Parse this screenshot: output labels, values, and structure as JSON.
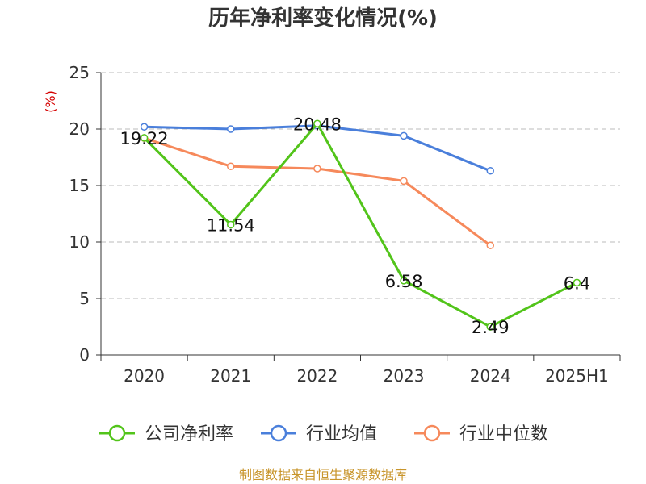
{
  "chart_data": {
    "type": "line",
    "title": "历年净利率变化情况(%)",
    "ylabel": "(%)",
    "xlabel": "",
    "categories": [
      "2020",
      "2021",
      "2022",
      "2023",
      "2024",
      "2025H1"
    ],
    "ylim": [
      0,
      25
    ],
    "yticks": [
      0,
      5,
      10,
      15,
      20,
      25
    ],
    "grid": true,
    "legend_position": "bottom",
    "series": [
      {
        "name": "公司净利率",
        "color": "#52c41a",
        "values": [
          19.22,
          11.54,
          20.48,
          6.58,
          2.49,
          6.4
        ],
        "labels": [
          "19.22",
          "11.54",
          "20.48",
          "6.58",
          "2.49",
          "6.4"
        ]
      },
      {
        "name": "行业均值",
        "color": "#4a7fdb",
        "values": [
          20.2,
          20.0,
          20.3,
          19.4,
          16.3,
          null
        ],
        "labels": null
      },
      {
        "name": "行业中位数",
        "color": "#f6895b",
        "values": [
          19.2,
          16.7,
          16.5,
          15.4,
          9.7,
          null
        ],
        "labels": null
      }
    ],
    "source": "制图数据来自恒生聚源数据库"
  }
}
